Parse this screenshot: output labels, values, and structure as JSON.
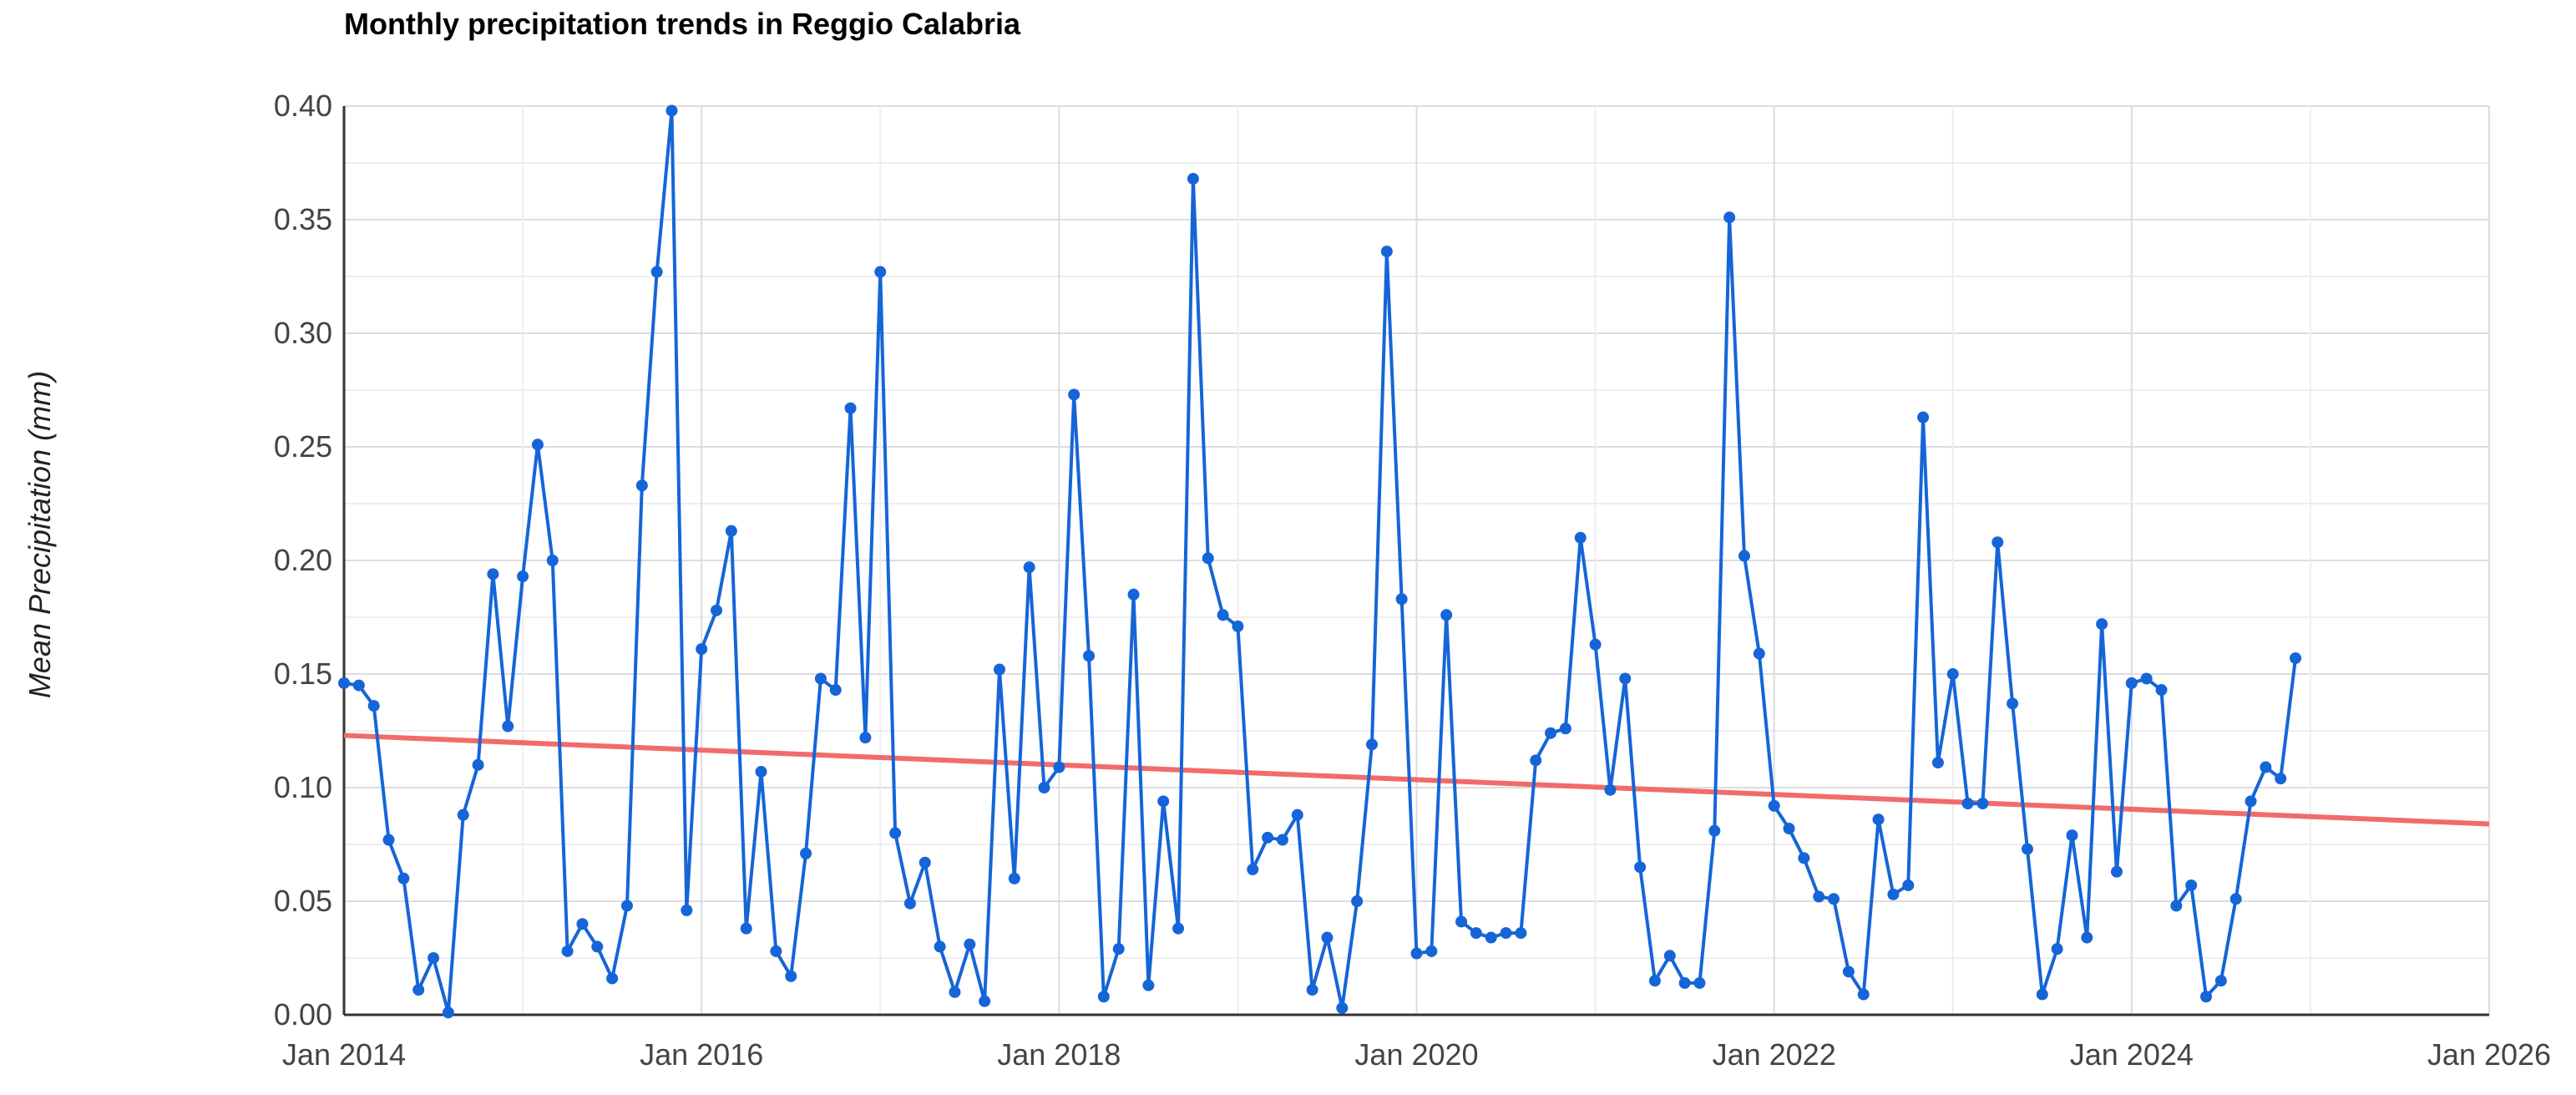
{
  "chart_data": {
    "type": "line",
    "title": "Monthly precipitation trends in Reggio Calabria",
    "xlabel": "",
    "ylabel": "Mean Precipitation (mm)",
    "x_range": [
      "2014-01",
      "2026-01"
    ],
    "ylim": [
      0,
      0.4
    ],
    "grid": true,
    "legend": "none",
    "x_tick_labels": [
      "Jan 2014",
      "Jan 2016",
      "Jan 2018",
      "Jan 2020",
      "Jan 2022",
      "Jan 2024",
      "Jan 2026"
    ],
    "y_tick_labels": [
      "0.00",
      "0.05",
      "0.10",
      "0.15",
      "0.20",
      "0.25",
      "0.30",
      "0.35",
      "0.40"
    ],
    "colors": {
      "series": "#1565d8",
      "trend": "#f26b6b",
      "grid": "#dddddd",
      "axis": "#333333"
    },
    "series": [
      {
        "start": "2014-01",
        "frequency": "monthly",
        "values": [
          0.146,
          0.145,
          0.136,
          0.077,
          0.06,
          0.011,
          0.025,
          0.001,
          0.088,
          0.11,
          0.194,
          0.127,
          0.193,
          0.251,
          0.2,
          0.028,
          0.04,
          0.03,
          0.016,
          0.048,
          0.233,
          0.327,
          0.398,
          0.046,
          0.161,
          0.178,
          0.213,
          0.038,
          0.107,
          0.028,
          0.017,
          0.071,
          0.148,
          0.143,
          0.267,
          0.122,
          0.327,
          0.08,
          0.049,
          0.067,
          0.03,
          0.01,
          0.031,
          0.006,
          0.152,
          0.06,
          0.197,
          0.1,
          0.109,
          0.273,
          0.158,
          0.008,
          0.029,
          0.185,
          0.013,
          0.094,
          0.038,
          0.368,
          0.201,
          0.176,
          0.171,
          0.064,
          0.078,
          0.077,
          0.088,
          0.011,
          0.034,
          0.003,
          0.05,
          0.119,
          0.336,
          0.183,
          0.027,
          0.028,
          0.176,
          0.041,
          0.036,
          0.034,
          0.036,
          0.036,
          0.112,
          0.124,
          0.126,
          0.21,
          0.163,
          0.099,
          0.148,
          0.065,
          0.015,
          0.026,
          0.014,
          0.014,
          0.081,
          0.351,
          0.202,
          0.159,
          0.092,
          0.082,
          0.069,
          0.052,
          0.051,
          0.019,
          0.009,
          0.086,
          0.053,
          0.057,
          0.263,
          0.111,
          0.15,
          0.093,
          0.093,
          0.208,
          0.137,
          0.073,
          0.009,
          0.029,
          0.079,
          0.034,
          0.172,
          0.063,
          0.146,
          0.148,
          0.143,
          0.048,
          0.057,
          0.008,
          0.015,
          0.051,
          0.094,
          0.109,
          0.104,
          0.157
        ]
      }
    ],
    "trendline": {
      "type": "linear",
      "start_value": 0.123,
      "end_value": 0.084
    }
  }
}
